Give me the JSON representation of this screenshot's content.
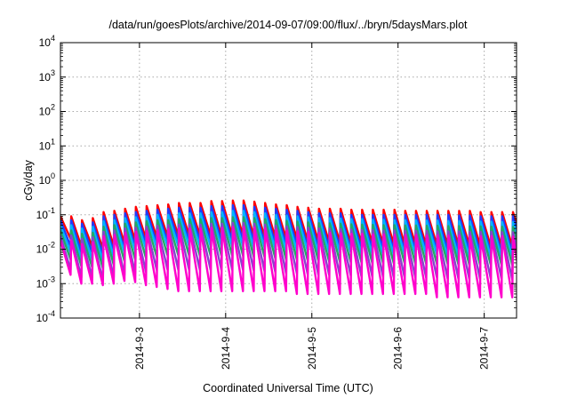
{
  "chart_data": {
    "type": "line",
    "title": "/data/run/goesPlots/archive/2014-09-07/09:00/flux/../bryn/5daysMars.plot",
    "xlabel": "Coordinated Universal Time (UTC)",
    "ylabel": "cGy/day",
    "yscale": "log",
    "ylim": [
      0.0001,
      10000
    ],
    "xlim": [
      "2014-09-02T02:00",
      "2014-09-07T09:00"
    ],
    "grid": true,
    "legend": "none",
    "y_ticks": [
      {
        "value": 0.0001,
        "mant": "10",
        "exp": "-4"
      },
      {
        "value": 0.001,
        "mant": "10",
        "exp": "-3"
      },
      {
        "value": 0.01,
        "mant": "10",
        "exp": "-2"
      },
      {
        "value": 0.1,
        "mant": "10",
        "exp": "-1"
      },
      {
        "value": 1,
        "mant": "10",
        "exp": "0"
      },
      {
        "value": 10,
        "mant": "10",
        "exp": "1"
      },
      {
        "value": 100,
        "mant": "10",
        "exp": "2"
      },
      {
        "value": 1000,
        "mant": "10",
        "exp": "3"
      },
      {
        "value": 10000,
        "mant": "10",
        "exp": "4"
      }
    ],
    "x_ticks": [
      {
        "date": "2014-09-03T00:00",
        "label": "2014-9-3"
      },
      {
        "date": "2014-09-04T00:00",
        "label": "2014-9-4"
      },
      {
        "date": "2014-09-05T00:00",
        "label": "2014-9-5"
      },
      {
        "date": "2014-09-06T00:00",
        "label": "2014-9-6"
      },
      {
        "date": "2014-09-07T00:00",
        "label": "2014-9-7"
      }
    ],
    "cycle_period_hours": 3,
    "series": [
      {
        "color": "#ff0000",
        "peaks": [
          0.09,
          0.09,
          0.07,
          0.08,
          0.12,
          0.13,
          0.15,
          0.17,
          0.18,
          0.19,
          0.2,
          0.22,
          0.22,
          0.22,
          0.25,
          0.25,
          0.26,
          0.26,
          0.24,
          0.22,
          0.2,
          0.19,
          0.17,
          0.16,
          0.15,
          0.15,
          0.15,
          0.14,
          0.14,
          0.14,
          0.14,
          0.14,
          0.13,
          0.13,
          0.13,
          0.13,
          0.13,
          0.13,
          0.13,
          0.12,
          0.12,
          0.12,
          0.12,
          0.12
        ],
        "troughs": [
          0.02,
          0.012,
          0.012,
          0.01,
          0.012,
          0.015,
          0.018,
          0.02,
          0.022,
          0.023,
          0.025,
          0.025,
          0.025,
          0.025,
          0.025,
          0.025,
          0.025,
          0.024,
          0.023,
          0.022,
          0.02,
          0.02,
          0.018,
          0.017,
          0.016,
          0.016,
          0.015,
          0.015,
          0.015,
          0.014,
          0.014,
          0.014,
          0.014,
          0.013,
          0.013,
          0.013,
          0.013,
          0.013,
          0.013,
          0.012,
          0.012,
          0.012,
          0.012,
          0.012
        ]
      },
      {
        "color": "#1e3cff",
        "peaks": [
          0.07,
          0.07,
          0.055,
          0.06,
          0.09,
          0.1,
          0.11,
          0.12,
          0.13,
          0.14,
          0.15,
          0.16,
          0.16,
          0.16,
          0.18,
          0.18,
          0.19,
          0.19,
          0.17,
          0.16,
          0.15,
          0.14,
          0.13,
          0.12,
          0.11,
          0.11,
          0.11,
          0.1,
          0.1,
          0.1,
          0.1,
          0.1,
          0.1,
          0.1,
          0.1,
          0.1,
          0.1,
          0.095,
          0.095,
          0.09,
          0.09,
          0.09,
          0.09,
          0.09
        ],
        "troughs": [
          0.012,
          0.008,
          0.008,
          0.007,
          0.008,
          0.01,
          0.012,
          0.014,
          0.015,
          0.016,
          0.017,
          0.017,
          0.017,
          0.017,
          0.017,
          0.017,
          0.017,
          0.016,
          0.015,
          0.014,
          0.013,
          0.013,
          0.012,
          0.011,
          0.011,
          0.011,
          0.01,
          0.01,
          0.01,
          0.01,
          0.009,
          0.009,
          0.009,
          0.009,
          0.009,
          0.009,
          0.009,
          0.009,
          0.008,
          0.008,
          0.008,
          0.008,
          0.008,
          0.008
        ]
      },
      {
        "color": "#00b4ff",
        "peaks": [
          0.05,
          0.05,
          0.04,
          0.045,
          0.065,
          0.07,
          0.08,
          0.085,
          0.09,
          0.1,
          0.1,
          0.11,
          0.11,
          0.11,
          0.12,
          0.12,
          0.13,
          0.13,
          0.12,
          0.11,
          0.1,
          0.095,
          0.09,
          0.085,
          0.08,
          0.08,
          0.078,
          0.075,
          0.075,
          0.072,
          0.072,
          0.07,
          0.07,
          0.07,
          0.068,
          0.068,
          0.066,
          0.066,
          0.065,
          0.064,
          0.063,
          0.062,
          0.062,
          0.06
        ],
        "troughs": [
          0.008,
          0.005,
          0.005,
          0.0045,
          0.006,
          0.008,
          0.009,
          0.01,
          0.011,
          0.012,
          0.012,
          0.012,
          0.012,
          0.012,
          0.012,
          0.012,
          0.012,
          0.011,
          0.011,
          0.01,
          0.009,
          0.009,
          0.009,
          0.008,
          0.008,
          0.008,
          0.008,
          0.007,
          0.007,
          0.007,
          0.007,
          0.007,
          0.007,
          0.007,
          0.007,
          0.006,
          0.006,
          0.006,
          0.006,
          0.006,
          0.006,
          0.006,
          0.006,
          0.006
        ]
      },
      {
        "color": "#22aa66",
        "peaks": [
          0.035,
          0.035,
          0.028,
          0.03,
          0.045,
          0.05,
          0.055,
          0.06,
          0.065,
          0.07,
          0.07,
          0.075,
          0.075,
          0.075,
          0.08,
          0.08,
          0.085,
          0.085,
          0.08,
          0.075,
          0.07,
          0.066,
          0.063,
          0.06,
          0.057,
          0.056,
          0.055,
          0.053,
          0.052,
          0.051,
          0.05,
          0.05,
          0.049,
          0.049,
          0.048,
          0.048,
          0.047,
          0.047,
          0.046,
          0.046,
          0.045,
          0.045,
          0.044,
          0.044
        ],
        "troughs": [
          0.005,
          0.0032,
          0.003,
          0.0028,
          0.0035,
          0.0045,
          0.005,
          0.0055,
          0.006,
          0.0065,
          0.0065,
          0.0065,
          0.0065,
          0.0065,
          0.0065,
          0.0065,
          0.0065,
          0.006,
          0.006,
          0.0055,
          0.005,
          0.005,
          0.0048,
          0.0046,
          0.0044,
          0.0043,
          0.0042,
          0.0041,
          0.004,
          0.004,
          0.0039,
          0.0039,
          0.0038,
          0.0038,
          0.0037,
          0.0037,
          0.0036,
          0.0036,
          0.0036,
          0.0035,
          0.0035,
          0.0035,
          0.0034,
          0.0034
        ]
      },
      {
        "color": "#8844cc",
        "peaks": [
          0.025,
          0.025,
          0.02,
          0.022,
          0.032,
          0.035,
          0.04,
          0.042,
          0.045,
          0.048,
          0.05,
          0.052,
          0.052,
          0.052,
          0.055,
          0.055,
          0.058,
          0.058,
          0.055,
          0.052,
          0.048,
          0.046,
          0.044,
          0.042,
          0.04,
          0.039,
          0.038,
          0.037,
          0.036,
          0.036,
          0.035,
          0.035,
          0.034,
          0.034,
          0.034,
          0.033,
          0.033,
          0.033,
          0.032,
          0.032,
          0.032,
          0.031,
          0.031,
          0.031
        ],
        "troughs": [
          0.0025,
          0.0015,
          0.0015,
          0.0012,
          0.0015,
          0.0018,
          0.002,
          0.0022,
          0.0025,
          0.0025,
          0.0025,
          0.0025,
          0.0025,
          0.0025,
          0.0025,
          0.0025,
          0.0025,
          0.0024,
          0.0023,
          0.0022,
          0.002,
          0.002,
          0.0019,
          0.0018,
          0.0018,
          0.0017,
          0.0017,
          0.0016,
          0.0016,
          0.0016,
          0.0015,
          0.0015,
          0.0015,
          0.0015,
          0.0015,
          0.0014,
          0.0014,
          0.0014,
          0.0014,
          0.0014,
          0.0014,
          0.0013,
          0.0013,
          0.0013
        ]
      },
      {
        "color": "#ff00cc",
        "peaks": [
          0.018,
          0.018,
          0.014,
          0.016,
          0.024,
          0.026,
          0.03,
          0.032,
          0.034,
          0.036,
          0.038,
          0.04,
          0.04,
          0.04,
          0.042,
          0.042,
          0.044,
          0.044,
          0.042,
          0.04,
          0.037,
          0.035,
          0.033,
          0.032,
          0.03,
          0.03,
          0.029,
          0.028,
          0.028,
          0.027,
          0.027,
          0.026,
          0.026,
          0.026,
          0.025,
          0.025,
          0.025,
          0.025,
          0.024,
          0.024,
          0.024,
          0.024,
          0.023,
          0.023
        ],
        "troughs": [
          0.0018,
          0.001,
          0.001,
          0.0009,
          0.001,
          0.0012,
          0.0011,
          0.0009,
          0.0008,
          0.0007,
          0.0006,
          0.0006,
          0.0006,
          0.0006,
          0.0006,
          0.0006,
          0.0006,
          0.0006,
          0.0006,
          0.0006,
          0.0006,
          0.0005,
          0.0005,
          0.0005,
          0.0005,
          0.0005,
          0.0005,
          0.0005,
          0.0005,
          0.0005,
          0.0005,
          0.0005,
          0.0005,
          0.0005,
          0.0004,
          0.0004,
          0.0004,
          0.0004,
          0.0004,
          0.0004,
          0.0004,
          0.0004,
          0.0004,
          0.00035
        ]
      }
    ]
  }
}
